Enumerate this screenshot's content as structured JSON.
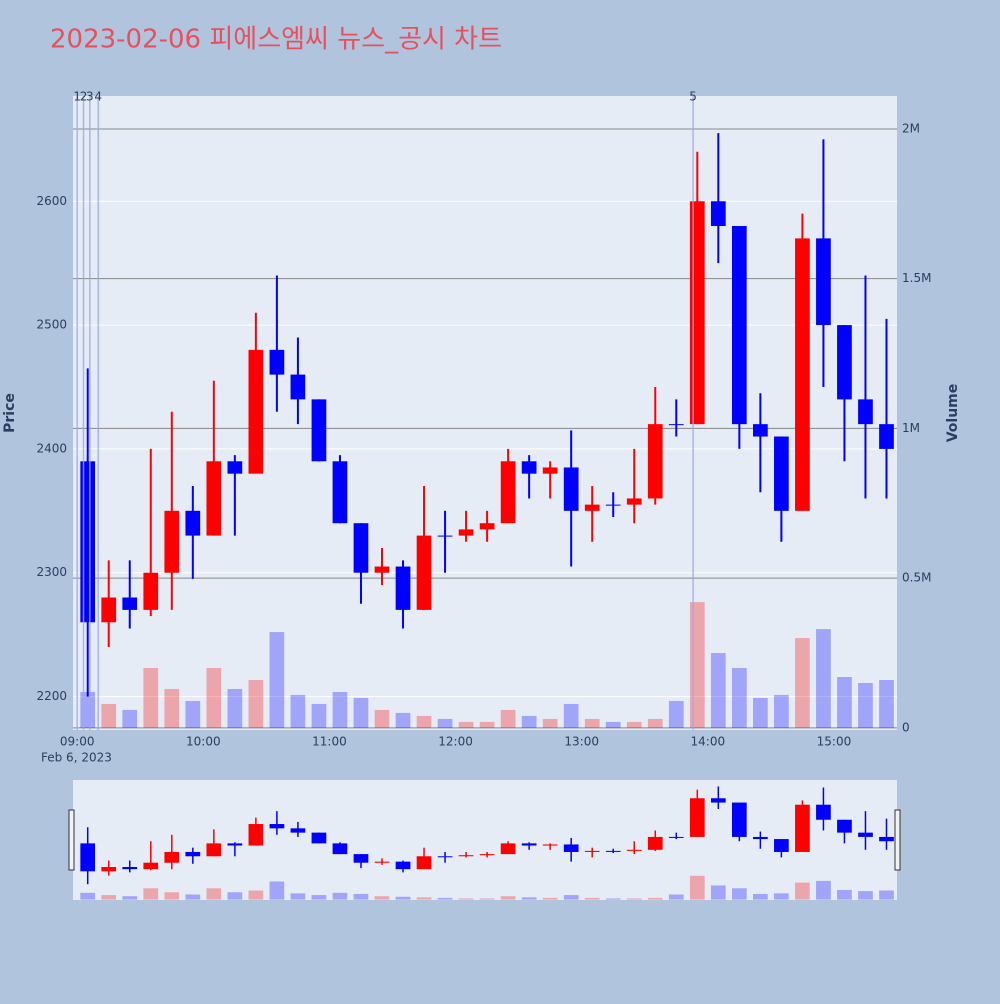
{
  "chart_data": {
    "type": "candlestick",
    "title": "2023-02-06 피에스엠씨 뉴스_공시 차트",
    "x_date_label": "Feb 6, 2023",
    "y_label": "Price",
    "y2_label": "Volume",
    "increasing_color": "#ff0000",
    "decreasing_color": "#0000ff",
    "x": [
      "09:00",
      "09:10",
      "09:20",
      "09:30",
      "09:40",
      "09:50",
      "10:00",
      "10:10",
      "10:20",
      "10:30",
      "10:40",
      "10:50",
      "11:00",
      "11:10",
      "11:20",
      "11:30",
      "11:40",
      "11:50",
      "12:00",
      "12:10",
      "12:20",
      "12:30",
      "12:40",
      "12:50",
      "13:00",
      "13:10",
      "13:20",
      "13:30",
      "13:40",
      "13:50",
      "14:00",
      "14:10",
      "14:20",
      "14:30",
      "14:40",
      "14:50",
      "15:00",
      "15:10",
      "15:20"
    ],
    "open": [
      2390,
      2260,
      2280,
      2270,
      2300,
      2350,
      2330,
      2390,
      2380,
      2480,
      2460,
      2440,
      2390,
      2340,
      2300,
      2305,
      2270,
      2330,
      2330,
      2335,
      2340,
      2390,
      2380,
      2385,
      2350,
      2355,
      2355,
      2360,
      2420,
      2420,
      2600,
      2580,
      2420,
      2410,
      2350,
      2570,
      2500,
      2440,
      2420
    ],
    "high": [
      2465,
      2310,
      2310,
      2400,
      2430,
      2370,
      2455,
      2395,
      2510,
      2540,
      2490,
      2440,
      2395,
      2340,
      2320,
      2310,
      2370,
      2350,
      2350,
      2350,
      2400,
      2395,
      2390,
      2415,
      2370,
      2365,
      2400,
      2450,
      2440,
      2640,
      2655,
      2580,
      2445,
      2410,
      2590,
      2650,
      2500,
      2540,
      2505
    ],
    "low": [
      2200,
      2240,
      2255,
      2265,
      2270,
      2295,
      2330,
      2330,
      2380,
      2430,
      2420,
      2390,
      2340,
      2275,
      2290,
      2255,
      2270,
      2300,
      2325,
      2325,
      2340,
      2360,
      2360,
      2305,
      2325,
      2345,
      2340,
      2355,
      2410,
      2420,
      2550,
      2400,
      2365,
      2325,
      2350,
      2450,
      2390,
      2360,
      2360
    ],
    "close": [
      2260,
      2280,
      2270,
      2300,
      2350,
      2330,
      2390,
      2380,
      2480,
      2460,
      2440,
      2390,
      2340,
      2300,
      2305,
      2270,
      2330,
      2330,
      2335,
      2340,
      2390,
      2380,
      2385,
      2350,
      2355,
      2355,
      2360,
      2420,
      2420,
      2600,
      2580,
      2420,
      2410,
      2350,
      2570,
      2500,
      2440,
      2420,
      2400
    ],
    "volume": [
      120000,
      80000,
      60000,
      200000,
      130000,
      90000,
      200000,
      130000,
      160000,
      320000,
      110000,
      80000,
      120000,
      100000,
      60000,
      50000,
      40000,
      30000,
      20000,
      20000,
      60000,
      40000,
      30000,
      80000,
      30000,
      20000,
      20000,
      30000,
      90000,
      420000,
      250000,
      200000,
      100000,
      110000,
      300000,
      330000,
      170000,
      150000,
      160000
    ],
    "news": [
      {
        "label": "1",
        "time": "09:00"
      },
      {
        "label": "2",
        "time": "09:03"
      },
      {
        "label": "3",
        "time": "09:06"
      },
      {
        "label": "4",
        "time": "09:10"
      },
      {
        "label": "5",
        "time": "13:53"
      }
    ],
    "xlim": [
      "08:58",
      "15:30"
    ],
    "xticks": [
      "09:00",
      "10:00",
      "11:00",
      "12:00",
      "13:00",
      "14:00",
      "15:00"
    ],
    "ylim": [
      2173,
      2685
    ],
    "yticks": [
      2200,
      2300,
      2400,
      2500,
      2600
    ],
    "y2lim": [
      -7000,
      2110000
    ],
    "y2ticks": [
      0,
      {
        "value": 500000,
        "label": "0.5M"
      },
      {
        "value": 1000000,
        "label": "1M"
      },
      {
        "value": 1500000,
        "label": "1.5M"
      },
      {
        "value": 2000000,
        "label": "2M"
      }
    ],
    "grid": true
  }
}
